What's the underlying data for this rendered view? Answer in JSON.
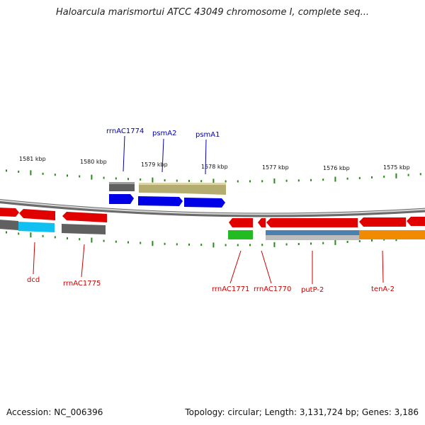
{
  "title": "Haloarcula marismortui ATCC 43049 chromosome I, complete seq...",
  "footer": {
    "accession": "Accession: NC_006396",
    "summary": "Topology: circular; Length: 3,131,724 bp; Genes: 3,186"
  },
  "colors": {
    "tick": "#2a8a1a",
    "gene_red": "#e00000",
    "gene_blue": "#0000e6",
    "rna_gray": "#606060",
    "olive": "#b5ad70",
    "cyan": "#10c0f0",
    "green": "#22bb22",
    "steel": "#4a7fb0",
    "orange": "#f08a00",
    "label_blue": "#0000aa",
    "label_red": "#cc0000"
  },
  "scale": {
    "unit": "kbp",
    "labels": [
      "1581 kbp",
      "1580 kbp",
      "1579 kbp",
      "1578 kbp",
      "1577 kbp",
      "1576 kbp",
      "1575 kbp"
    ]
  },
  "top_labels": [
    {
      "name": "rrnAC1774"
    },
    {
      "name": "psmA2"
    },
    {
      "name": "psmA1"
    }
  ],
  "bottom_labels": [
    {
      "name": "dcd"
    },
    {
      "name": "rrnAC1775"
    },
    {
      "name": "rrnAC1771"
    },
    {
      "name": "rrnAC1770"
    },
    {
      "name": "putP-2"
    },
    {
      "name": "tenA-2"
    }
  ]
}
